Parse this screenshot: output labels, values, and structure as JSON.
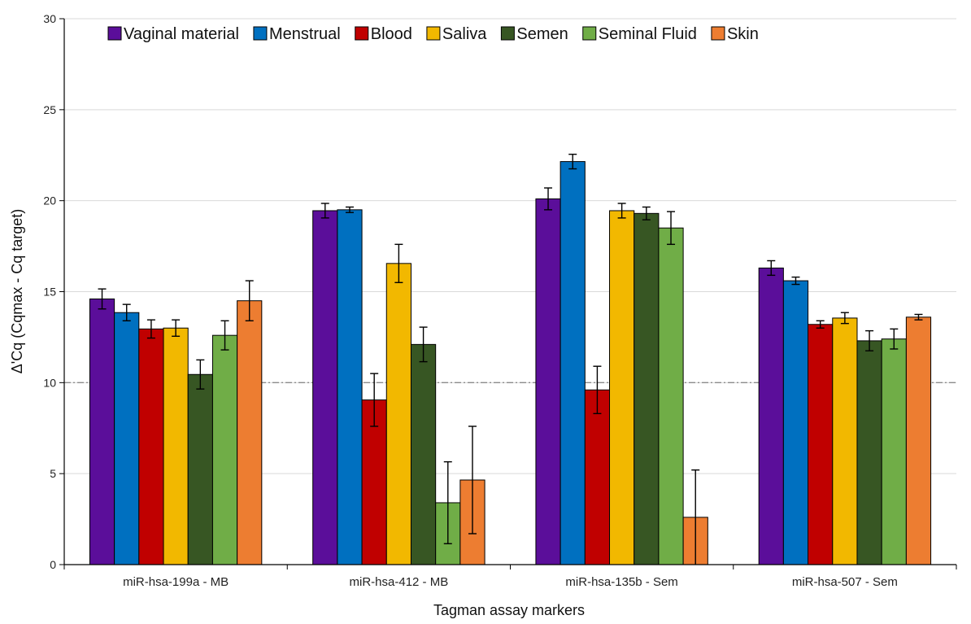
{
  "chart_data": {
    "type": "bar",
    "title": "",
    "xlabel": "Tagman assay markers",
    "ylabel": "Δ'Cq (Cqmax - Cq target)",
    "ylim": [
      0,
      30
    ],
    "yticks": [
      0,
      5,
      10,
      15,
      20,
      25,
      30
    ],
    "grid": true,
    "threshold": 10,
    "legend_position": "top",
    "categories": [
      "miR-hsa-199a - MB",
      "miR-hsa-412 - MB",
      "miR-hsa-135b - Sem",
      "miR-hsa-507 - Sem"
    ],
    "series": [
      {
        "name": "Vaginal material",
        "color": "#5b0e9a",
        "values": [
          14.6,
          19.45,
          20.1,
          16.3
        ],
        "errors": [
          0.55,
          0.4,
          0.6,
          0.4
        ]
      },
      {
        "name": "Menstrual",
        "color": "#0070c0",
        "values": [
          13.85,
          19.5,
          22.15,
          15.6
        ],
        "errors": [
          0.45,
          0.15,
          0.4,
          0.2
        ]
      },
      {
        "name": "Blood",
        "color": "#c00000",
        "values": [
          12.95,
          9.05,
          9.6,
          13.2
        ],
        "errors": [
          0.5,
          1.45,
          1.3,
          0.2
        ]
      },
      {
        "name": "Saliva",
        "color": "#f2b800",
        "values": [
          13.0,
          16.55,
          19.45,
          13.55
        ],
        "errors": [
          0.45,
          1.05,
          0.4,
          0.3
        ]
      },
      {
        "name": "Semen",
        "color": "#375623",
        "values": [
          10.45,
          12.1,
          19.3,
          12.3
        ],
        "errors": [
          0.8,
          0.95,
          0.35,
          0.55
        ]
      },
      {
        "name": "Seminal Fluid",
        "color": "#70ad47",
        "values": [
          12.6,
          3.4,
          18.5,
          12.4
        ],
        "errors": [
          0.8,
          2.25,
          0.9,
          0.55
        ]
      },
      {
        "name": "Skin",
        "color": "#ed7d31",
        "values": [
          14.5,
          4.65,
          2.6,
          13.6
        ],
        "errors": [
          1.1,
          2.95,
          2.6,
          0.15
        ]
      }
    ]
  }
}
